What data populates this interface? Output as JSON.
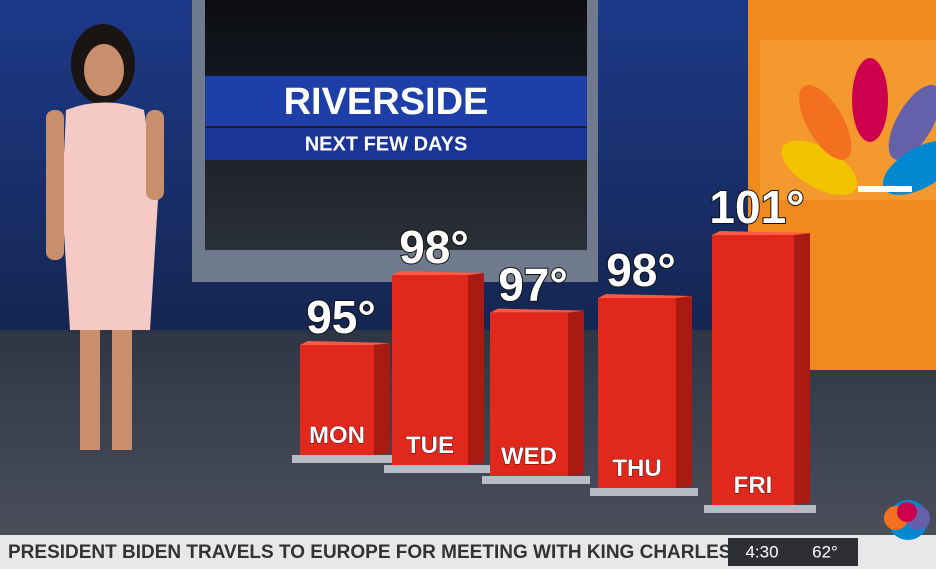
{
  "chart_data": {
    "type": "bar",
    "title": "RIVERSIDE",
    "subtitle": "NEXT FEW DAYS",
    "categories": [
      "MON",
      "TUE",
      "WED",
      "THU",
      "FRI"
    ],
    "values": [
      95,
      98,
      97,
      98,
      101
    ],
    "value_labels": [
      "95°",
      "98°",
      "97°",
      "98°",
      "101°"
    ],
    "color": "#e0281c"
  },
  "ticker": {
    "headline": "PRESIDENT BIDEN TRAVELS TO EUROPE FOR MEETING WITH KING CHARLES THE THI",
    "time": "4:30",
    "temperature": "62°"
  }
}
